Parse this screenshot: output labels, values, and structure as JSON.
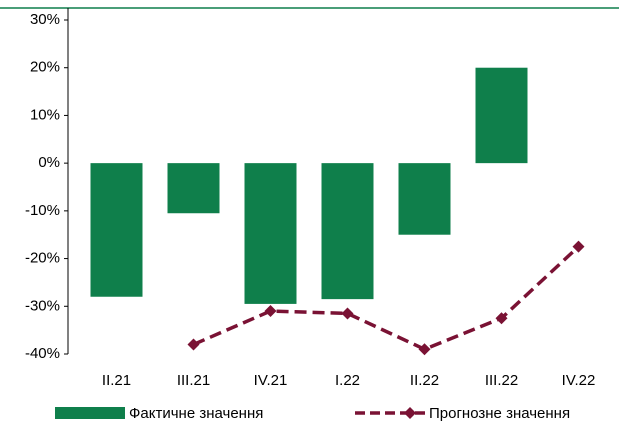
{
  "chart_data": {
    "type": "bar_line",
    "categories": [
      "II.21",
      "III.21",
      "IV.21",
      "I.22",
      "II.22",
      "III.22",
      "IV.22"
    ],
    "series": [
      {
        "name": "Фактичне значення",
        "type": "bar",
        "color": "#0f7f4b",
        "values": [
          -28,
          -10.5,
          -29.5,
          -28.5,
          -15,
          20,
          null
        ]
      },
      {
        "name": "Прогнозне значення",
        "type": "line",
        "color": "#7a1234",
        "values": [
          null,
          -38,
          -31,
          -31.5,
          -39,
          -32.5,
          -17.5
        ]
      }
    ],
    "ylim": [
      -40,
      30
    ],
    "yticks": [
      {
        "value": -40,
        "label": "-40%"
      },
      {
        "value": -30,
        "label": "-30%"
      },
      {
        "value": -20,
        "label": "-20%"
      },
      {
        "value": -10,
        "label": "-10%"
      },
      {
        "value": 0,
        "label": "0%"
      },
      {
        "value": 10,
        "label": "10%"
      },
      {
        "value": 20,
        "label": "20%"
      },
      {
        "value": 30,
        "label": "30%"
      }
    ],
    "grid": false
  }
}
